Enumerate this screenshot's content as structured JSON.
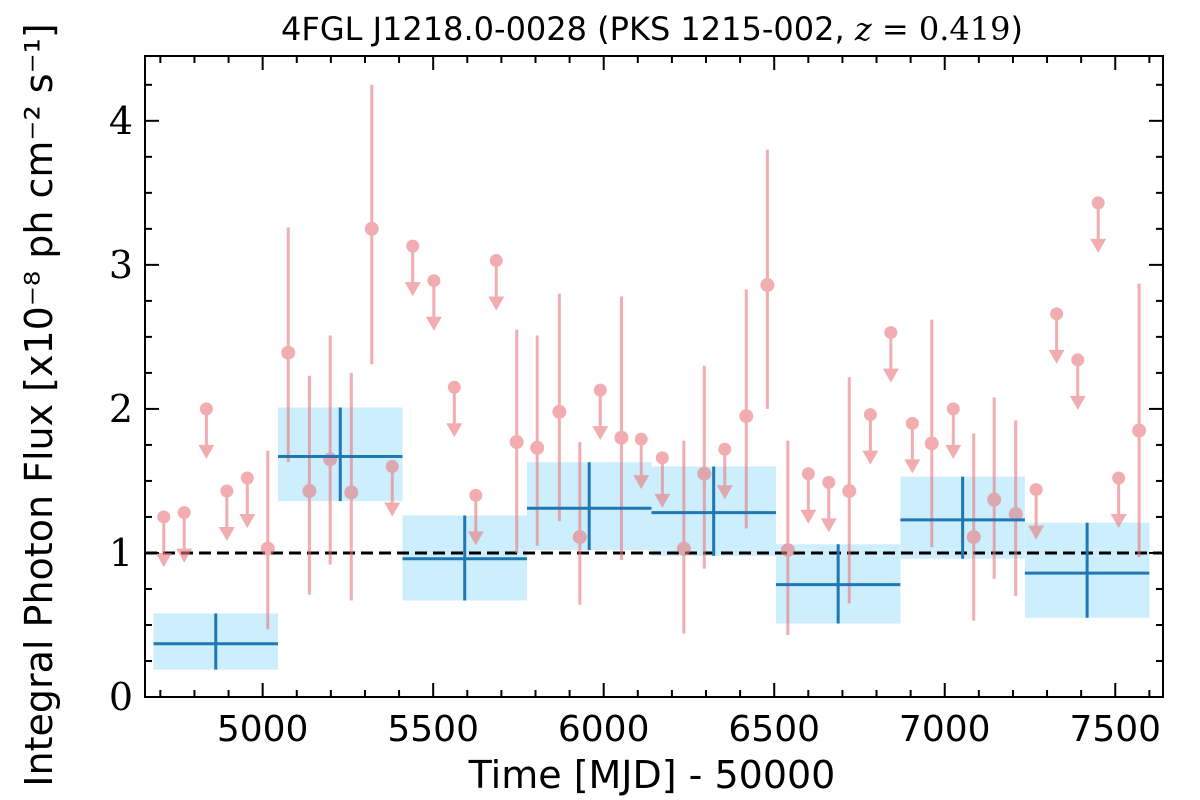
{
  "chart_data": {
    "type": "scatter",
    "title": "4FGL J1218.0-0028 (PKS 1215-002, z = 0.419)",
    "title_parts": {
      "prefix": "4FGL J1218.0-0028 (PKS 1215-002, ",
      "z_var": "z",
      "z_value": " = 0.419",
      "suffix": ")"
    },
    "xlabel": "Time [MJD] - 50000",
    "ylabel": "Integral Photon Flux [x10⁻⁸ ph cm⁻² s⁻¹]",
    "xlim": [
      4655,
      7640
    ],
    "ylim": [
      0,
      4.45
    ],
    "xticks": [
      5000,
      5500,
      6000,
      6500,
      7000,
      7500
    ],
    "yticks": [
      0,
      1,
      2,
      3,
      4
    ],
    "grid": false,
    "average_flux": 1.0,
    "colors": {
      "points": "#e8787c",
      "bins": "#1f77b4",
      "bin_band": "#cdeefd",
      "average": "#000000"
    },
    "detections": [
      {
        "x": 5015,
        "y": 1.03,
        "lo": 0.47,
        "hi": 1.71
      },
      {
        "x": 5075,
        "y": 2.39,
        "lo": 1.63,
        "hi": 3.26
      },
      {
        "x": 5137,
        "y": 1.43,
        "lo": 0.71,
        "hi": 2.23
      },
      {
        "x": 5198,
        "y": 1.65,
        "lo": 0.92,
        "hi": 2.51
      },
      {
        "x": 5260,
        "y": 1.42,
        "lo": 0.67,
        "hi": 2.25
      },
      {
        "x": 5320,
        "y": 3.25,
        "lo": 2.31,
        "hi": 4.25
      },
      {
        "x": 5745,
        "y": 1.77,
        "lo": 1.0,
        "hi": 2.55
      },
      {
        "x": 5805,
        "y": 1.73,
        "lo": 1.05,
        "hi": 2.51
      },
      {
        "x": 5870,
        "y": 1.98,
        "lo": 1.22,
        "hi": 2.8
      },
      {
        "x": 5930,
        "y": 1.11,
        "lo": 0.64,
        "hi": 1.77
      },
      {
        "x": 6052,
        "y": 1.8,
        "lo": 0.95,
        "hi": 2.78
      },
      {
        "x": 6235,
        "y": 1.03,
        "lo": 0.44,
        "hi": 1.78
      },
      {
        "x": 6295,
        "y": 1.55,
        "lo": 0.89,
        "hi": 2.3
      },
      {
        "x": 6418,
        "y": 1.95,
        "lo": 1.17,
        "hi": 2.83
      },
      {
        "x": 6480,
        "y": 2.86,
        "lo": 2.0,
        "hi": 3.8
      },
      {
        "x": 6540,
        "y": 1.02,
        "lo": 0.43,
        "hi": 1.78
      },
      {
        "x": 6720,
        "y": 1.43,
        "lo": 0.65,
        "hi": 2.22
      },
      {
        "x": 6962,
        "y": 1.76,
        "lo": 1.04,
        "hi": 2.62
      },
      {
        "x": 7085,
        "y": 1.11,
        "lo": 0.53,
        "hi": 1.83
      },
      {
        "x": 7145,
        "y": 1.37,
        "lo": 0.82,
        "hi": 2.08
      },
      {
        "x": 7208,
        "y": 1.27,
        "lo": 0.7,
        "hi": 1.92
      },
      {
        "x": 7570,
        "y": 1.85,
        "lo": 0.97,
        "hi": 2.87
      }
    ],
    "upper_limits": [
      {
        "x": 4710,
        "y": 1.25
      },
      {
        "x": 4770,
        "y": 1.28
      },
      {
        "x": 4835,
        "y": 2.0
      },
      {
        "x": 4895,
        "y": 1.43
      },
      {
        "x": 4955,
        "y": 1.52
      },
      {
        "x": 5380,
        "y": 1.6
      },
      {
        "x": 5440,
        "y": 3.13
      },
      {
        "x": 5502,
        "y": 2.89
      },
      {
        "x": 5562,
        "y": 2.15
      },
      {
        "x": 5625,
        "y": 1.4
      },
      {
        "x": 5685,
        "y": 3.03
      },
      {
        "x": 5990,
        "y": 2.13
      },
      {
        "x": 6110,
        "y": 1.79
      },
      {
        "x": 6172,
        "y": 1.66
      },
      {
        "x": 6355,
        "y": 1.72
      },
      {
        "x": 6600,
        "y": 1.55
      },
      {
        "x": 6660,
        "y": 1.49
      },
      {
        "x": 6782,
        "y": 1.96
      },
      {
        "x": 6842,
        "y": 2.53
      },
      {
        "x": 6905,
        "y": 1.9
      },
      {
        "x": 7025,
        "y": 2.0
      },
      {
        "x": 7268,
        "y": 1.44
      },
      {
        "x": 7328,
        "y": 2.66
      },
      {
        "x": 7390,
        "y": 2.34
      },
      {
        "x": 7450,
        "y": 3.43
      },
      {
        "x": 7510,
        "y": 1.52
      }
    ],
    "bins": [
      {
        "x0": 4680,
        "x1": 5045,
        "y": 0.37,
        "lo": 0.19,
        "hi": 0.58
      },
      {
        "x0": 5045,
        "x1": 5410,
        "y": 1.67,
        "lo": 1.36,
        "hi": 2.01
      },
      {
        "x0": 5410,
        "x1": 5775,
        "y": 0.96,
        "lo": 0.67,
        "hi": 1.26
      },
      {
        "x0": 5775,
        "x1": 6140,
        "y": 1.31,
        "lo": 1.02,
        "hi": 1.63
      },
      {
        "x0": 6140,
        "x1": 6505,
        "y": 1.28,
        "lo": 0.98,
        "hi": 1.6
      },
      {
        "x0": 6505,
        "x1": 6870,
        "y": 0.78,
        "lo": 0.51,
        "hi": 1.06
      },
      {
        "x0": 6870,
        "x1": 7235,
        "y": 1.23,
        "lo": 0.96,
        "hi": 1.53
      },
      {
        "x0": 7235,
        "x1": 7600,
        "y": 0.86,
        "lo": 0.55,
        "hi": 1.21
      }
    ]
  }
}
